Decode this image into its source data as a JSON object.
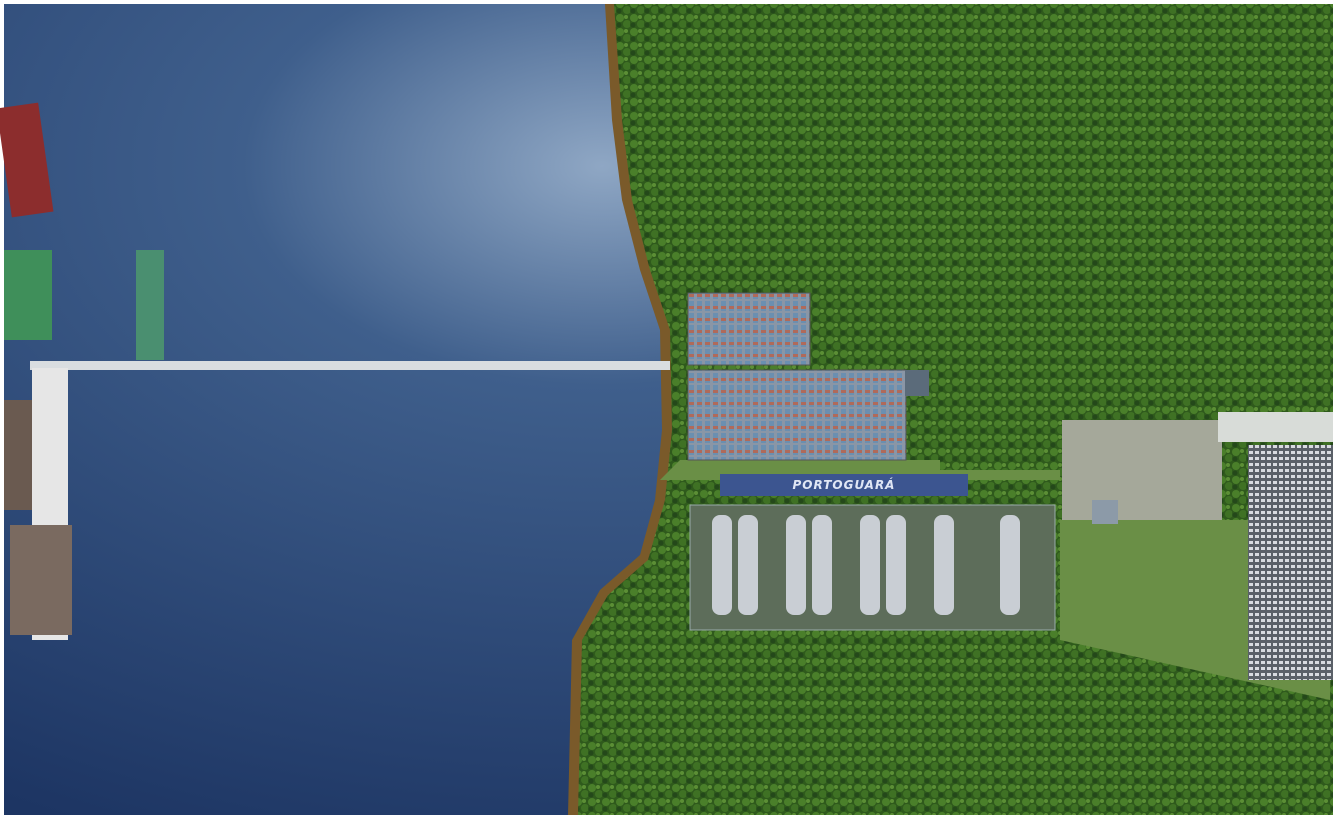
{
  "image": {
    "building_sign": "PORTOGUARÁ"
  }
}
